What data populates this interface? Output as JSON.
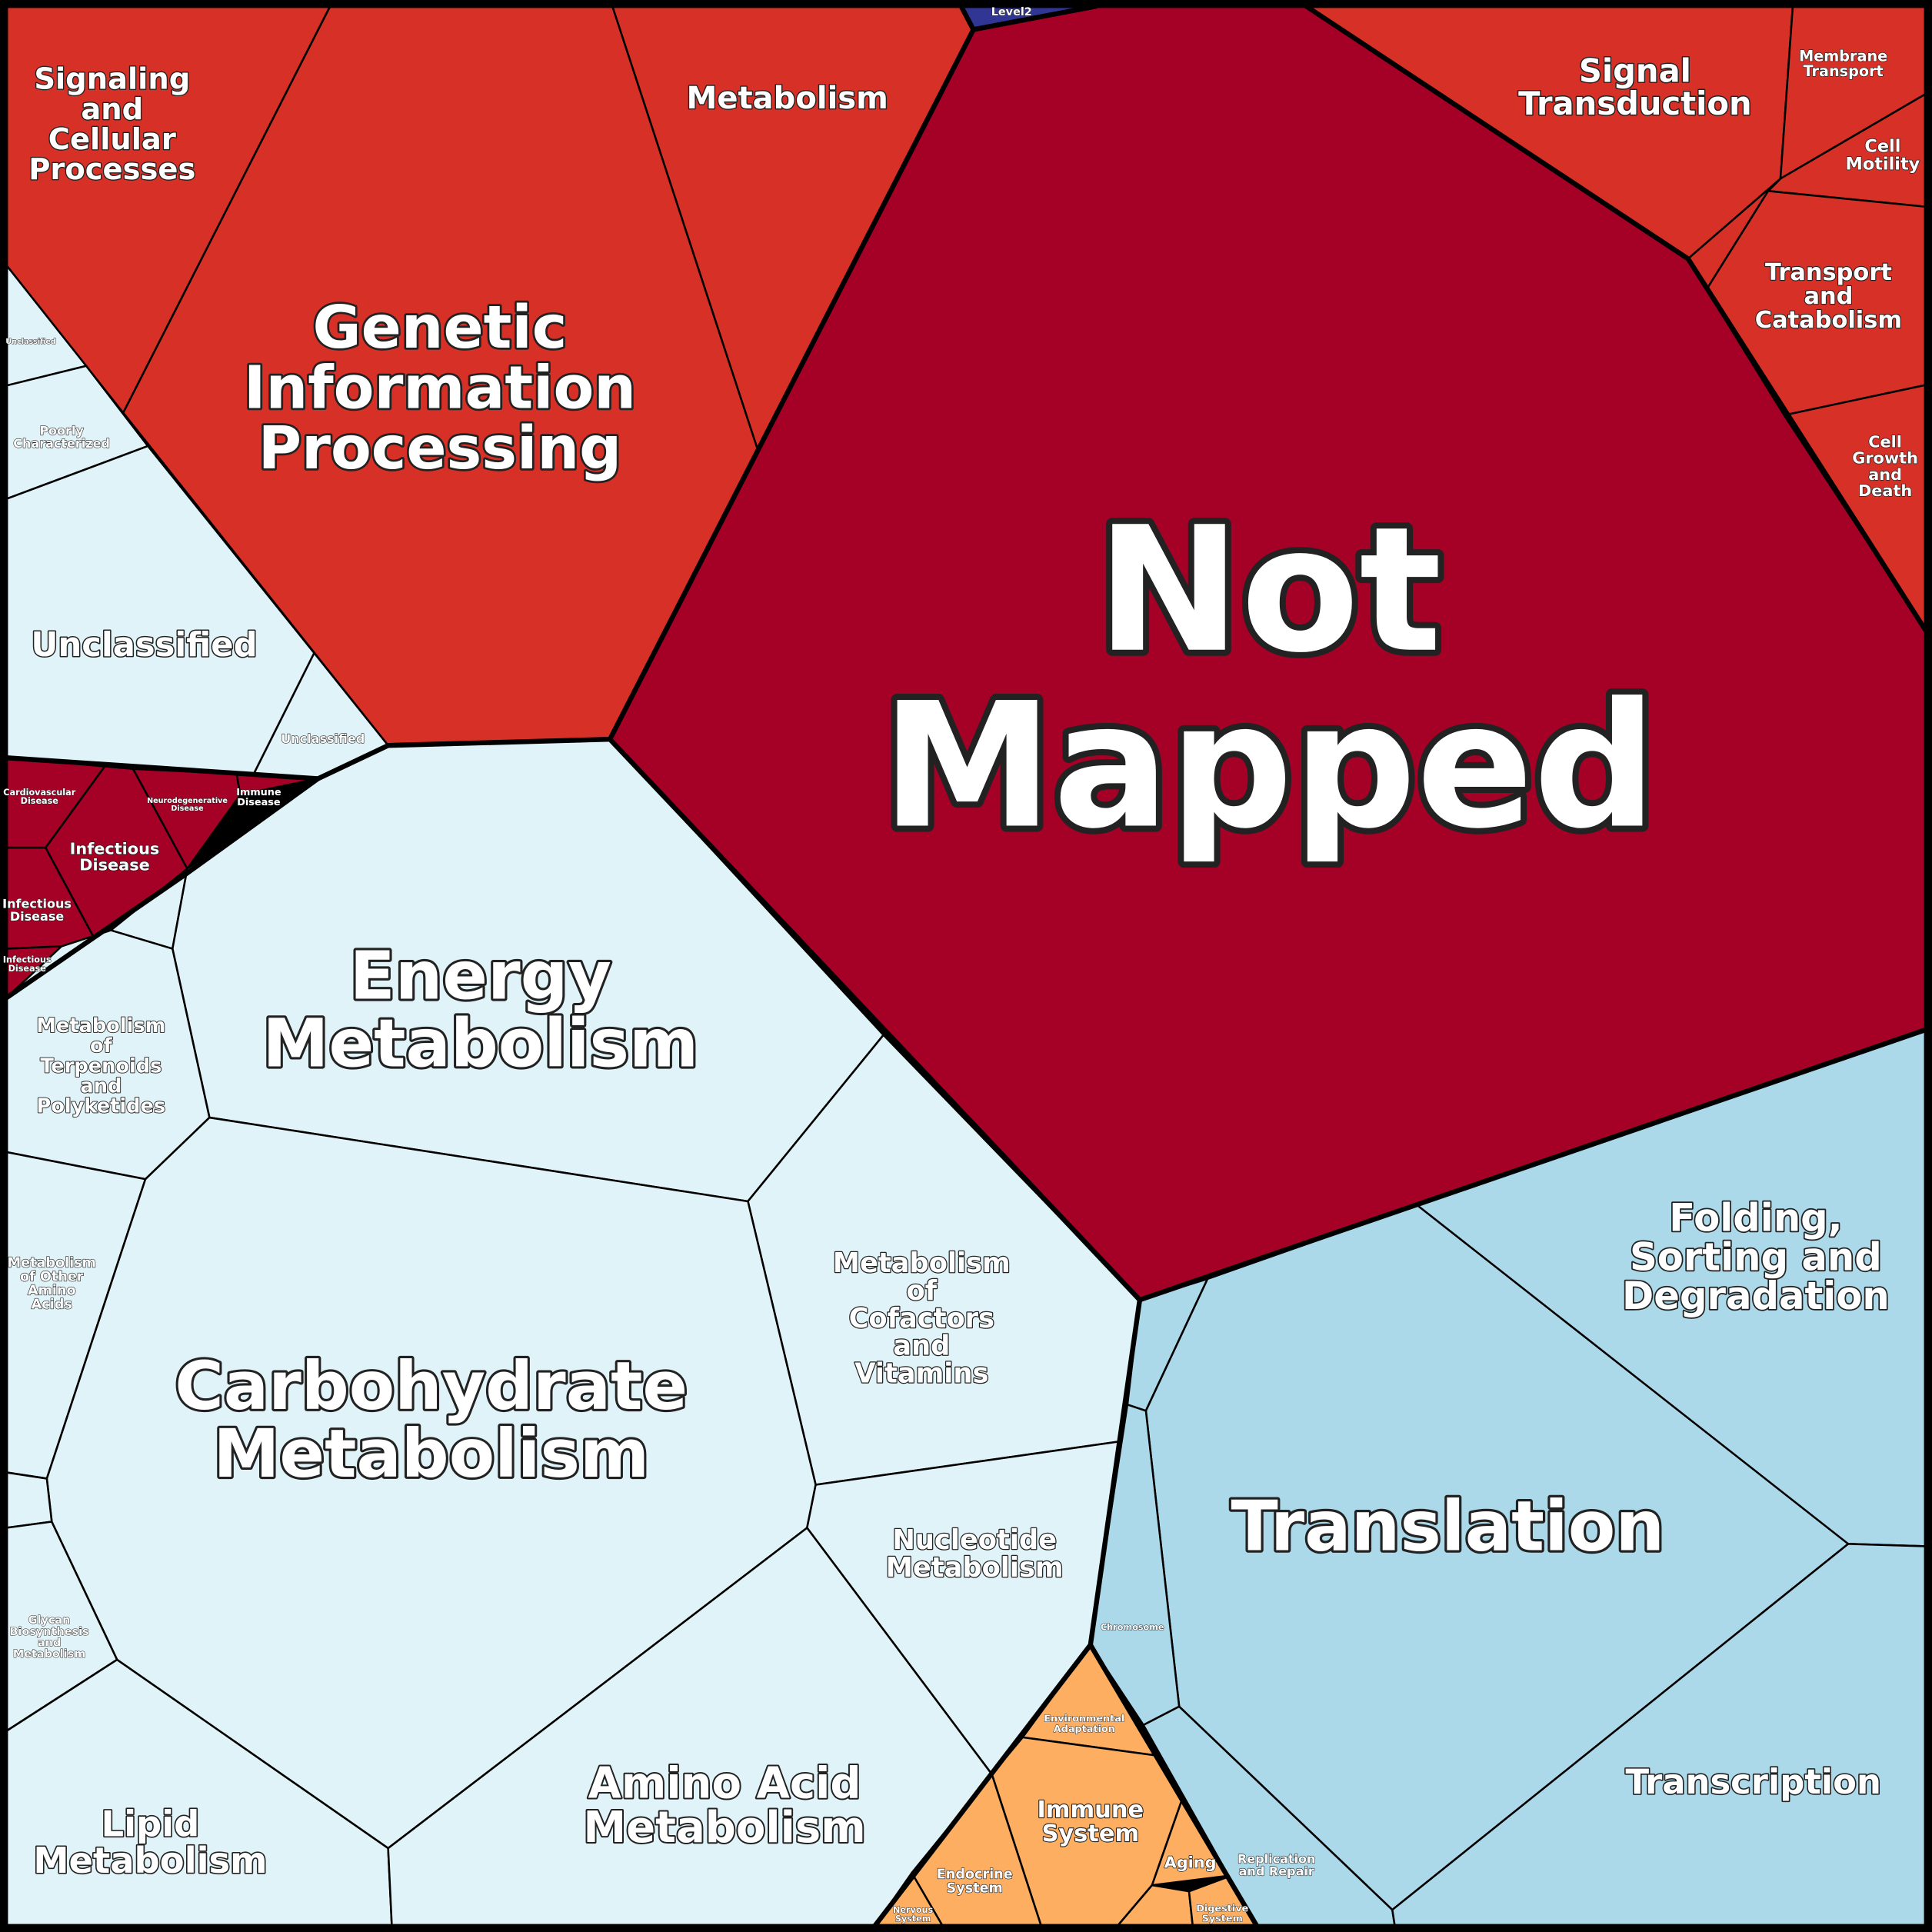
{
  "cells": [
    {
      "lines": [
        "Not",
        "Mapped"
      ]
    },
    {
      "lines": [
        "Genetic",
        "Information",
        "Processing"
      ]
    },
    {
      "lines": [
        "Signaling",
        "and",
        "Cellular",
        "Processes"
      ]
    },
    {
      "lines": [
        "Metabolism"
      ]
    },
    {
      "lines": [
        "Signal",
        "Transduction"
      ]
    },
    {
      "lines": [
        "Membrane",
        "Transport"
      ]
    },
    {
      "lines": [
        "Cell",
        "Motility"
      ]
    },
    {
      "lines": [
        "Transport",
        "and",
        "Catabolism"
      ]
    },
    {
      "lines": [
        "Cell",
        "Growth",
        "and",
        "Death"
      ]
    },
    {
      "lines": [
        "Unclassified"
      ]
    },
    {
      "lines": [
        "Poorly",
        "Characterized"
      ]
    },
    {
      "lines": [
        "Unclassified"
      ]
    },
    {
      "lines": [
        "Unclassified"
      ]
    },
    {
      "lines": [
        "Cardiovascular",
        "Disease"
      ]
    },
    {
      "lines": [
        "Neurodegenerative",
        "Disease"
      ]
    },
    {
      "lines": [
        "Immune",
        "Disease"
      ]
    },
    {
      "lines": [
        "Infectious",
        "Disease"
      ]
    },
    {
      "lines": [
        "Infectious",
        "Disease"
      ]
    },
    {
      "lines": [
        "Infectious",
        "Disease"
      ]
    },
    {
      "lines": [
        "Energy",
        "Metabolism"
      ]
    },
    {
      "lines": [
        "Metabolism",
        "of",
        "Terpenoids",
        "and",
        "Polyketides"
      ]
    },
    {
      "lines": [
        "Metabolism",
        "of Other",
        "Amino",
        "Acids"
      ]
    },
    {
      "lines": [
        "Metabolism",
        "of",
        "Cofactors",
        "and",
        "Vitamins"
      ]
    },
    {
      "lines": [
        "Carbohydrate",
        "Metabolism"
      ]
    },
    {
      "lines": [
        "Nucleotide",
        "Metabolism"
      ]
    },
    {
      "lines": [
        "Glycan",
        "Biosynthesis",
        "and",
        "Metabolism"
      ]
    },
    {
      "lines": [
        "Lipid",
        "Metabolism"
      ]
    },
    {
      "lines": [
        "Amino Acid",
        "Metabolism"
      ]
    },
    {
      "lines": [
        "Folding,",
        "Sorting and",
        "Degradation"
      ]
    },
    {
      "lines": [
        "Translation"
      ]
    },
    {
      "lines": [
        "Transcription"
      ]
    },
    {
      "lines": [
        "Chromosome"
      ]
    },
    {
      "lines": [
        "Replication",
        "and Repair"
      ]
    },
    {
      "lines": [
        "Environmental",
        "Adaptation"
      ]
    },
    {
      "lines": [
        "Immune",
        "System"
      ]
    },
    {
      "lines": [
        "Aging"
      ]
    },
    {
      "lines": [
        "Endocrine",
        "System"
      ]
    },
    {
      "lines": [
        "Digestive",
        "System"
      ]
    },
    {
      "lines": [
        "Nervous",
        "System"
      ]
    },
    {
      "lines": [
        "Level2"
      ]
    }
  ]
}
